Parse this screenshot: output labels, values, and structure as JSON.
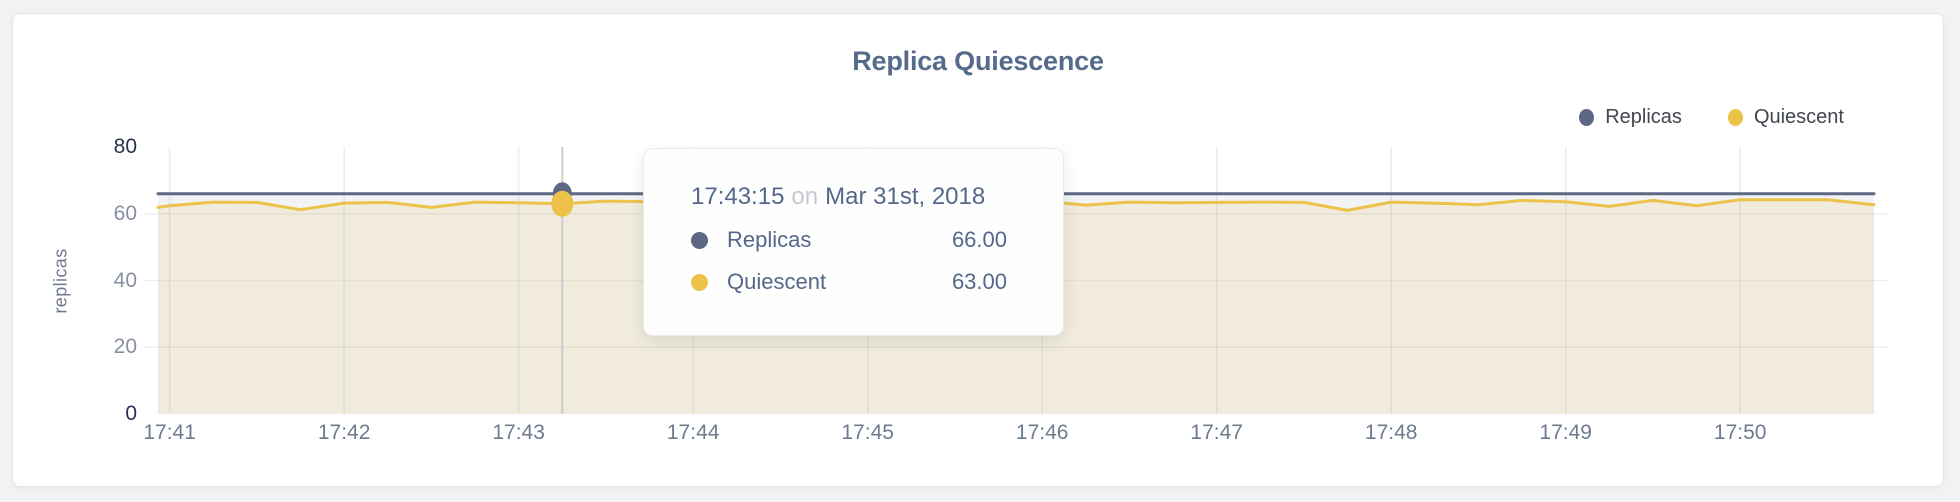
{
  "chart_data": {
    "type": "area",
    "title": "Replica Quiescence",
    "ylabel": "replicas",
    "ylim": [
      0,
      80
    ],
    "y_ticks": [
      0,
      20,
      40,
      60,
      80
    ],
    "x_ticks": [
      "17:41",
      "17:42",
      "17:43",
      "17:44",
      "17:45",
      "17:46",
      "17:47",
      "17:48",
      "17:49",
      "17:50"
    ],
    "x_domain": [
      "17:40:56",
      "17:50:46"
    ],
    "grid": true,
    "legend_position": "top-right",
    "x": [
      "17:40:56",
      "17:41:00",
      "17:41:15",
      "17:41:30",
      "17:41:45",
      "17:42:00",
      "17:42:15",
      "17:42:30",
      "17:42:45",
      "17:43:00",
      "17:43:15",
      "17:43:30",
      "17:43:45",
      "17:44:00",
      "17:44:15",
      "17:44:30",
      "17:44:45",
      "17:45:00",
      "17:45:15",
      "17:45:30",
      "17:45:45",
      "17:46:00",
      "17:46:15",
      "17:46:30",
      "17:46:45",
      "17:47:00",
      "17:47:15",
      "17:47:30",
      "17:47:45",
      "17:48:00",
      "17:48:15",
      "17:48:30",
      "17:48:45",
      "17:49:00",
      "17:49:15",
      "17:49:30",
      "17:49:45",
      "17:50:00",
      "17:50:15",
      "17:50:30",
      "17:50:46"
    ],
    "series": [
      {
        "name": "Replicas",
        "color": "#5d6984",
        "fill": "rgba(93,105,132,0.08)",
        "values": [
          66,
          66,
          66,
          66,
          66,
          66,
          66,
          66,
          66,
          66,
          66,
          66,
          66,
          66,
          66,
          66,
          66,
          66,
          66,
          66,
          66,
          66,
          66,
          66,
          66,
          66,
          66,
          66,
          66,
          66,
          66,
          66,
          66,
          66,
          66,
          66,
          66,
          66,
          66,
          66,
          66
        ]
      },
      {
        "name": "Quiescent",
        "color": "#ecc24a",
        "fill": "rgba(236,194,74,0.14)",
        "values": [
          61.9,
          62.4,
          63.5,
          63.4,
          61.2,
          63.2,
          63.4,
          61.9,
          63.5,
          63.3,
          63.0,
          63.8,
          63.6,
          63.5,
          63.4,
          63.6,
          63.5,
          63.4,
          63.6,
          63.5,
          63.7,
          63.8,
          62.6,
          63.5,
          63.3,
          63.4,
          63.5,
          63.4,
          61.0,
          63.5,
          63.2,
          62.7,
          64.0,
          63.6,
          62.2,
          64.0,
          62.4,
          64.2,
          64.2,
          64.2,
          62.7
        ]
      }
    ],
    "hover": {
      "index": 10,
      "time": "17:43:15"
    }
  },
  "legend": {
    "items": [
      {
        "label": "Replicas",
        "color": "#5d6984"
      },
      {
        "label": "Quiescent",
        "color": "#ecc24a"
      }
    ]
  },
  "tooltip": {
    "time": "17:43:15",
    "conjunction": "on",
    "date": "Mar 31st, 2018",
    "rows": [
      {
        "label": "Replicas",
        "value": "66.00",
        "color": "#5d6984"
      },
      {
        "label": "Quiescent",
        "value": "63.00",
        "color": "#ecc24a"
      }
    ]
  }
}
